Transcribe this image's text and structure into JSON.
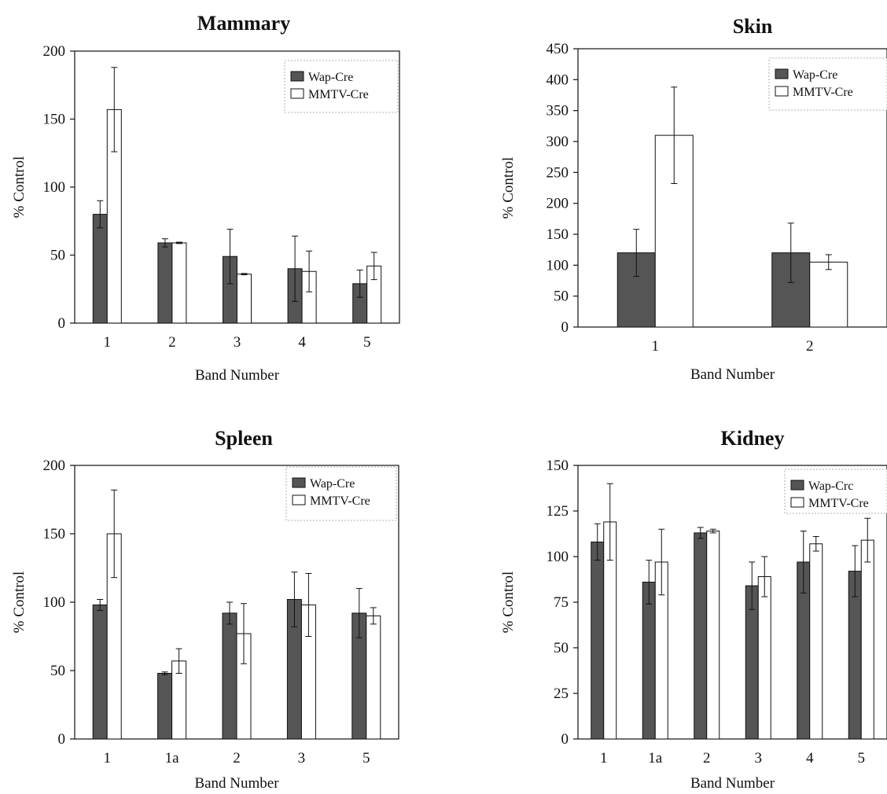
{
  "colors": {
    "wap_fill": "#555555",
    "mmtv_fill": "#ffffff",
    "axis": "#111111"
  },
  "chart_data": [
    {
      "id": "mammary",
      "type": "bar",
      "title": "Mammary",
      "xlabel": "Band Number",
      "ylabel": "% Control",
      "ylim": [
        0,
        200
      ],
      "yticks": [
        0,
        50,
        100,
        150,
        200
      ],
      "grid": false,
      "legend_position": "top-right",
      "categories": [
        "1",
        "2",
        "3",
        "4",
        "5"
      ],
      "series": [
        {
          "name": "Wap-Cre",
          "values": [
            80,
            59,
            49,
            40,
            29
          ],
          "errors": [
            10,
            3,
            20,
            24,
            10
          ]
        },
        {
          "name": "MMTV-Cre",
          "values": [
            157,
            59,
            36,
            38,
            42
          ],
          "errors": [
            31,
            0.5,
            0.5,
            15,
            10
          ]
        }
      ]
    },
    {
      "id": "skin",
      "type": "bar",
      "title": "Skin",
      "xlabel": "Band Number",
      "ylabel": "% Control",
      "ylim": [
        0,
        450
      ],
      "yticks": [
        0,
        50,
        100,
        150,
        200,
        250,
        300,
        350,
        400,
        450
      ],
      "grid": false,
      "legend_position": "top-right",
      "categories": [
        "1",
        "2"
      ],
      "series": [
        {
          "name": "Wap-Cre",
          "values": [
            120,
            120
          ],
          "errors": [
            38,
            48
          ]
        },
        {
          "name": "MMTV-Cre",
          "values": [
            310,
            105
          ],
          "errors": [
            78,
            12
          ]
        }
      ]
    },
    {
      "id": "spleen",
      "type": "bar",
      "title": "Spleen",
      "xlabel": "Band Number",
      "ylabel": "% Control",
      "ylim": [
        0,
        200
      ],
      "yticks": [
        0,
        50,
        100,
        150,
        200
      ],
      "grid": false,
      "legend_position": "top-right",
      "categories": [
        "1",
        "1a",
        "2",
        "3",
        "5"
      ],
      "series": [
        {
          "name": "Wap-Cre",
          "values": [
            98,
            48,
            92,
            102,
            92
          ],
          "errors": [
            4,
            1,
            8,
            20,
            18
          ]
        },
        {
          "name": "MMTV-Cre",
          "values": [
            150,
            57,
            77,
            98,
            90
          ],
          "errors": [
            32,
            9,
            22,
            23,
            6
          ]
        }
      ]
    },
    {
      "id": "kidney",
      "type": "bar",
      "title": "Kidney",
      "xlabel": "Band Number",
      "ylabel": "% Control",
      "ylim": [
        0,
        150
      ],
      "yticks": [
        0,
        25,
        50,
        75,
        100,
        125,
        150
      ],
      "grid": false,
      "legend_position": "top-right",
      "categories": [
        "1",
        "1a",
        "2",
        "3",
        "4",
        "5"
      ],
      "series": [
        {
          "name": "Wap-Crc",
          "values": [
            108,
            86,
            113,
            84,
            97,
            92
          ],
          "errors": [
            10,
            12,
            3,
            13,
            17,
            14
          ]
        },
        {
          "name": "MMTV-Cre",
          "values": [
            119,
            97,
            114,
            89,
            107,
            109
          ],
          "errors": [
            21,
            18,
            1,
            11,
            4,
            12
          ]
        }
      ]
    }
  ]
}
